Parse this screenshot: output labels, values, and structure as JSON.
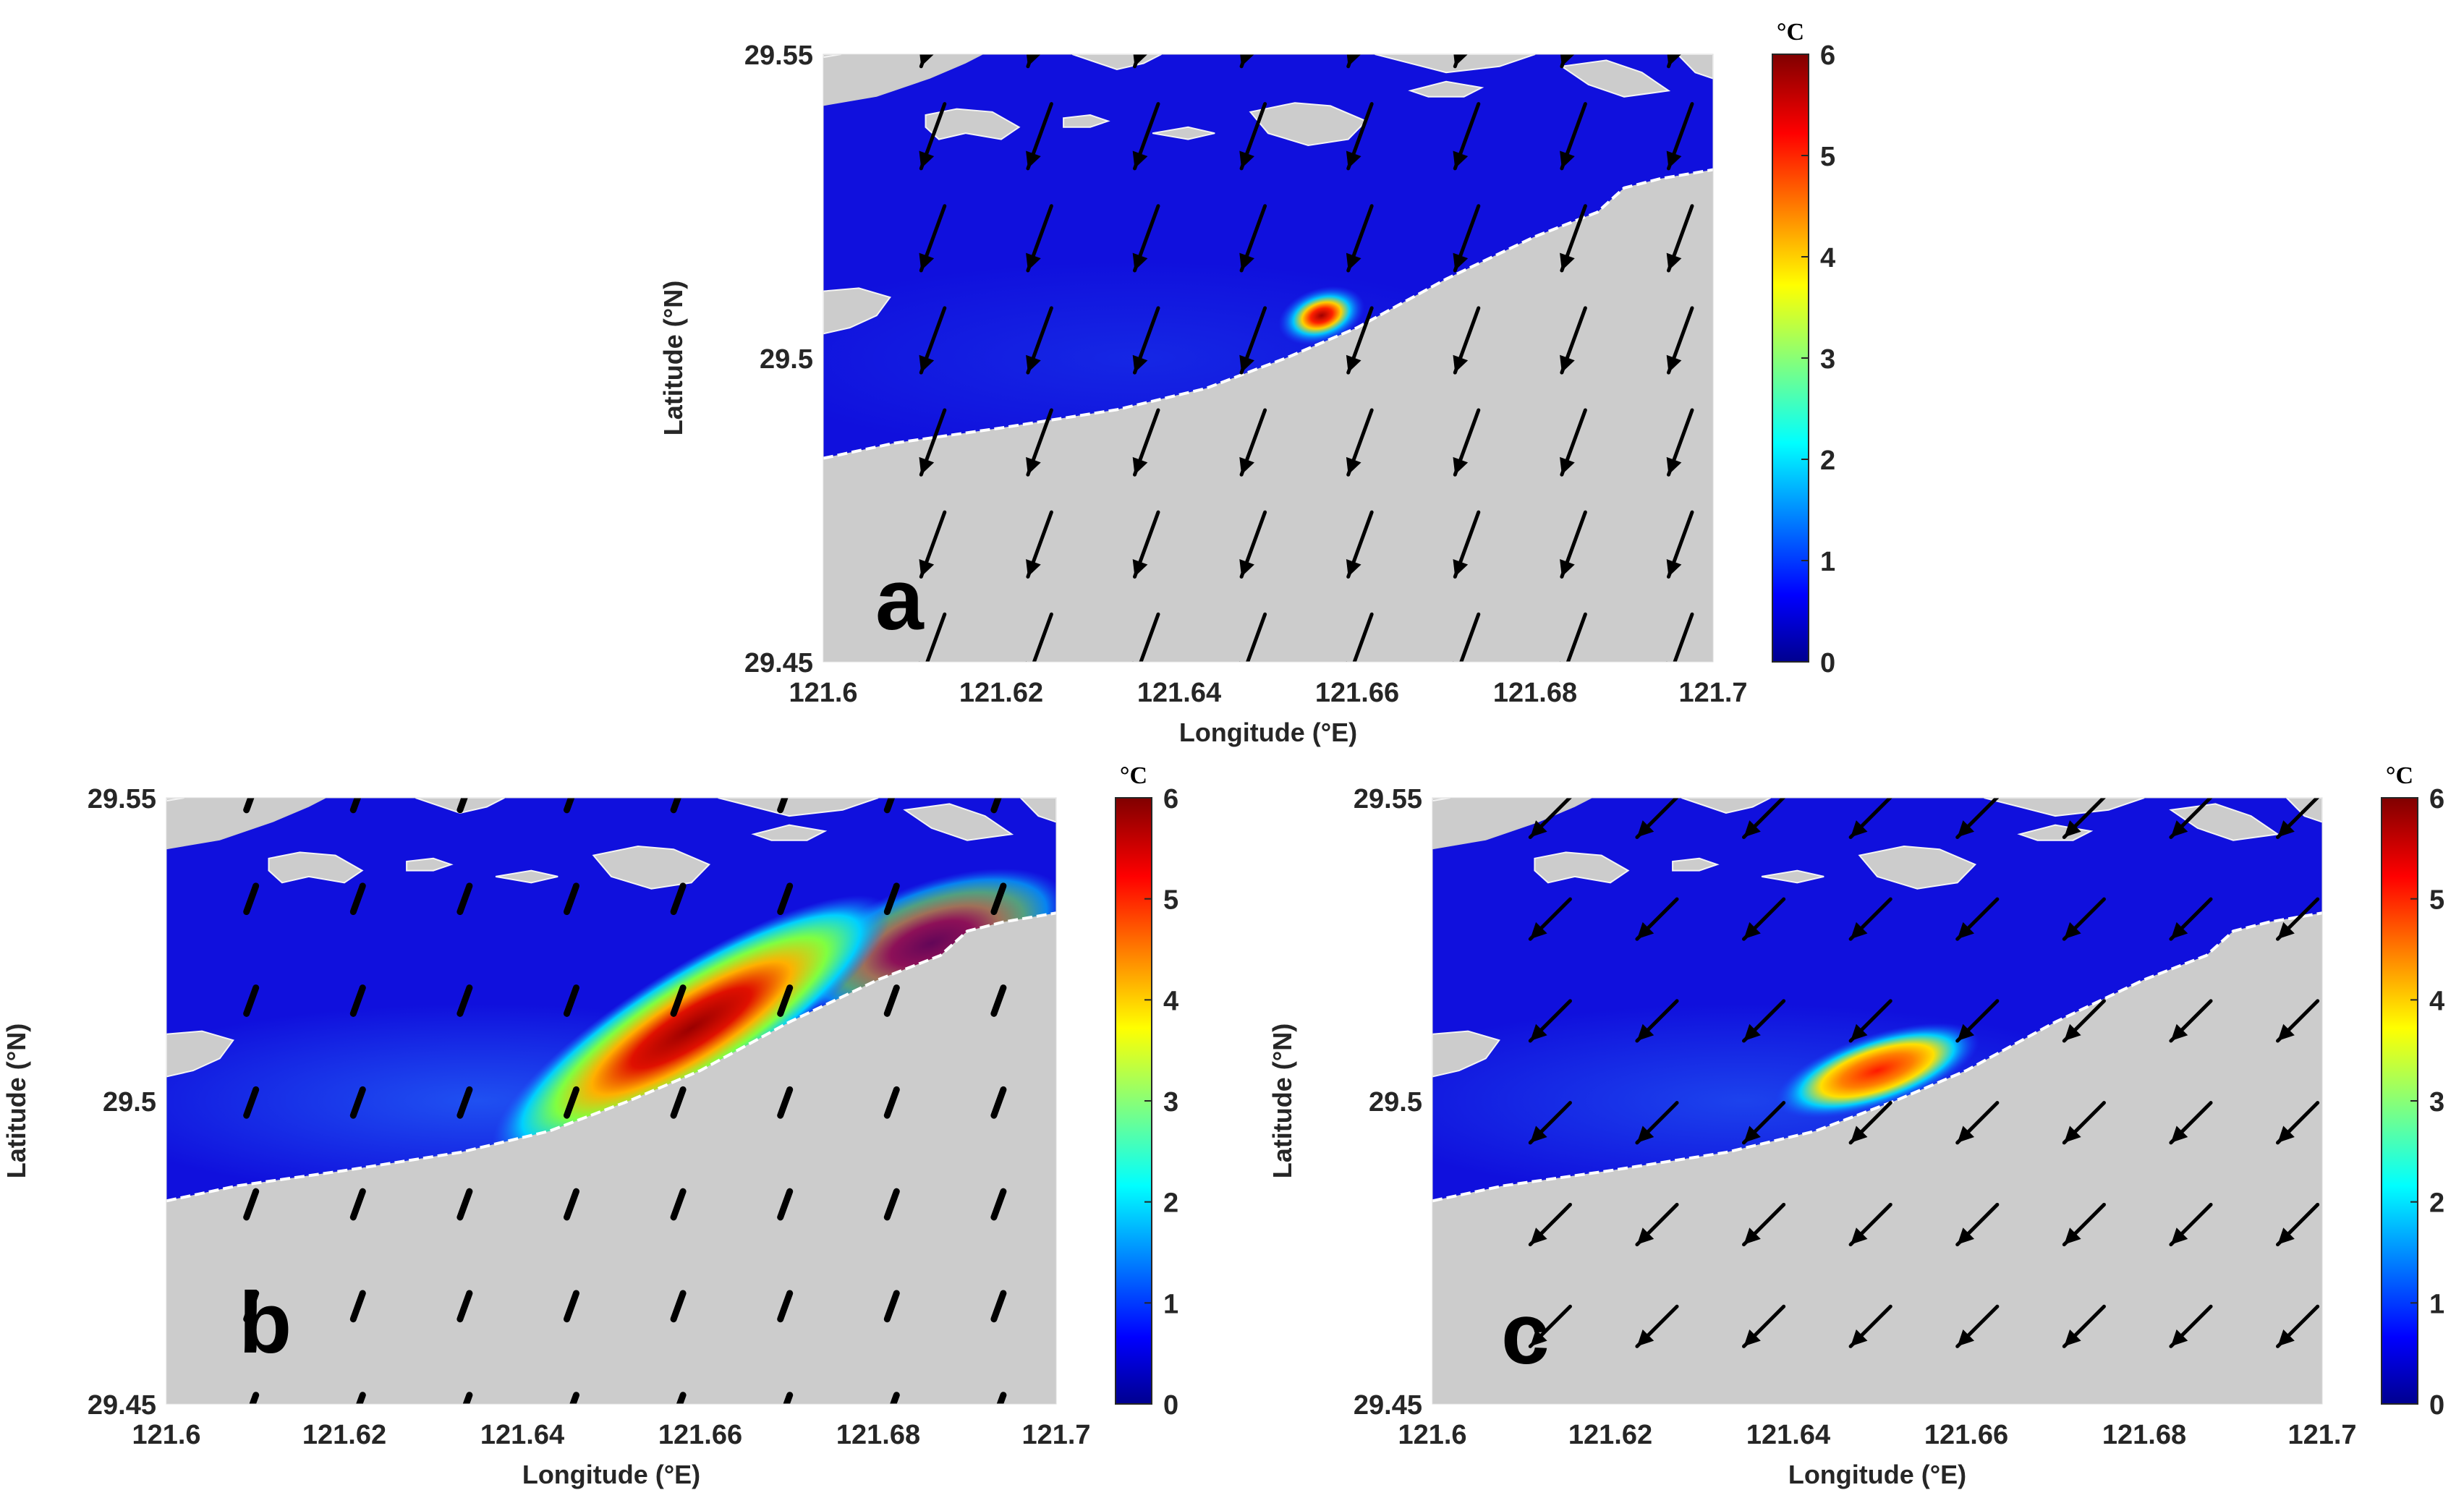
{
  "chart_data": [
    {
      "type": "heatmap",
      "panel_label": "a",
      "xlabel": "Longitude (°E)",
      "ylabel": "Latitude (°N)",
      "xlim": [
        121.6,
        121.7
      ],
      "ylim": [
        29.45,
        29.55
      ],
      "x_ticks": [
        "121.6",
        "121.62",
        "121.64",
        "121.66",
        "121.68",
        "121.7"
      ],
      "y_ticks": [
        "29.45",
        "29.5",
        "29.55"
      ],
      "colorbar": {
        "unit": "°C",
        "range": [
          0,
          6
        ],
        "ticks": [
          "0",
          "1",
          "2",
          "3",
          "4",
          "5",
          "6"
        ]
      },
      "plume": {
        "lon": 121.656,
        "lat": 29.507,
        "peak": 6,
        "extent": "small"
      },
      "arrows": {
        "direction_deg": 200,
        "length": "long",
        "style": "sharp"
      }
    },
    {
      "type": "heatmap",
      "panel_label": "b",
      "xlabel": "Longitude (°E)",
      "ylabel": "Latitude (°N)",
      "xlim": [
        121.6,
        121.7
      ],
      "ylim": [
        29.45,
        29.55
      ],
      "x_ticks": [
        "121.6",
        "121.62",
        "121.64",
        "121.66",
        "121.68",
        "121.7"
      ],
      "y_ticks": [
        "29.45",
        "29.5",
        "29.55"
      ],
      "colorbar": {
        "unit": "°C",
        "range": [
          0,
          6
        ],
        "ticks": [
          "0",
          "1",
          "2",
          "3",
          "4",
          "5",
          "6"
        ]
      },
      "plume": {
        "lon": 121.659,
        "lat": 29.512,
        "peak": 6,
        "extent": "large"
      },
      "arrows": {
        "direction_deg": 200,
        "length": "short",
        "style": "blunt"
      }
    },
    {
      "type": "heatmap",
      "panel_label": "c",
      "xlabel": "Longitude (°E)",
      "ylabel": "Latitude (°N)",
      "xlim": [
        121.6,
        121.7
      ],
      "ylim": [
        29.45,
        29.55
      ],
      "x_ticks": [
        "121.6",
        "121.62",
        "121.64",
        "121.66",
        "121.68",
        "121.7"
      ],
      "y_ticks": [
        "29.45",
        "29.5",
        "29.55"
      ],
      "colorbar": {
        "unit": "°C",
        "range": [
          0,
          6
        ],
        "ticks": [
          "0",
          "1",
          "2",
          "3",
          "4",
          "5",
          "6"
        ]
      },
      "plume": {
        "lon": 121.65,
        "lat": 29.505,
        "peak": 5,
        "extent": "medium"
      },
      "arrows": {
        "direction_deg": 225,
        "length": "medium",
        "style": "sharp"
      }
    }
  ],
  "colors": {
    "water": "#1010dd",
    "land": "#cccccc",
    "jet": [
      "#00008f",
      "#0000ff",
      "#0080ff",
      "#00ffff",
      "#80ff80",
      "#ffff00",
      "#ff8000",
      "#ff0000",
      "#800000"
    ]
  }
}
